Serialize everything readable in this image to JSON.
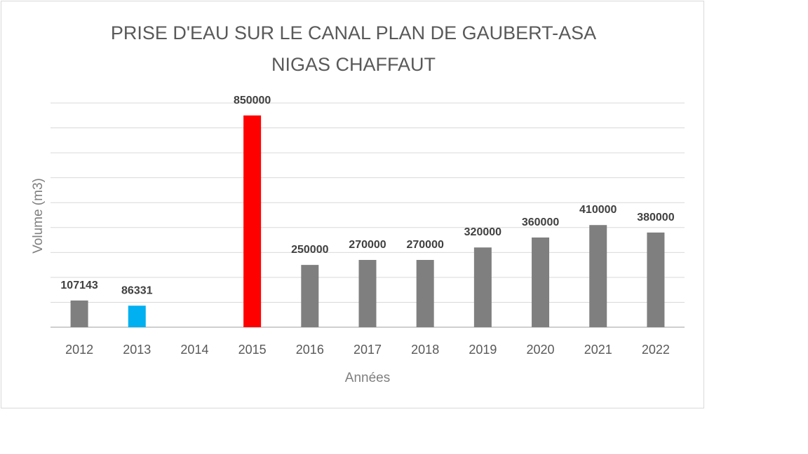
{
  "chart_data": {
    "type": "bar",
    "title_lines": [
      "PRISE D'EAU SUR LE CANAL PLAN DE GAUBERT-ASA",
      "NIGAS CHAFFAUT"
    ],
    "xlabel": "Années",
    "ylabel": "Volume (m3)",
    "categories": [
      "2012",
      "2013",
      "2014",
      "2015",
      "2016",
      "2017",
      "2018",
      "2019",
      "2020",
      "2021",
      "2022"
    ],
    "values": [
      107143,
      86331,
      null,
      850000,
      250000,
      270000,
      270000,
      320000,
      360000,
      410000,
      380000
    ],
    "data_labels": [
      "107143",
      "86331",
      "",
      "850000",
      "250000",
      "270000",
      "270000",
      "320000",
      "360000",
      "410000",
      "380000"
    ],
    "colors": [
      "#7f7f7f",
      "#00b0f0",
      "#7f7f7f",
      "#ff0000",
      "#7f7f7f",
      "#7f7f7f",
      "#7f7f7f",
      "#7f7f7f",
      "#7f7f7f",
      "#7f7f7f",
      "#7f7f7f"
    ],
    "ylim": [
      0,
      900000
    ],
    "y_gridline_step": 100000,
    "y_tick_labels_shown": false,
    "grid": true,
    "legend": "none"
  }
}
